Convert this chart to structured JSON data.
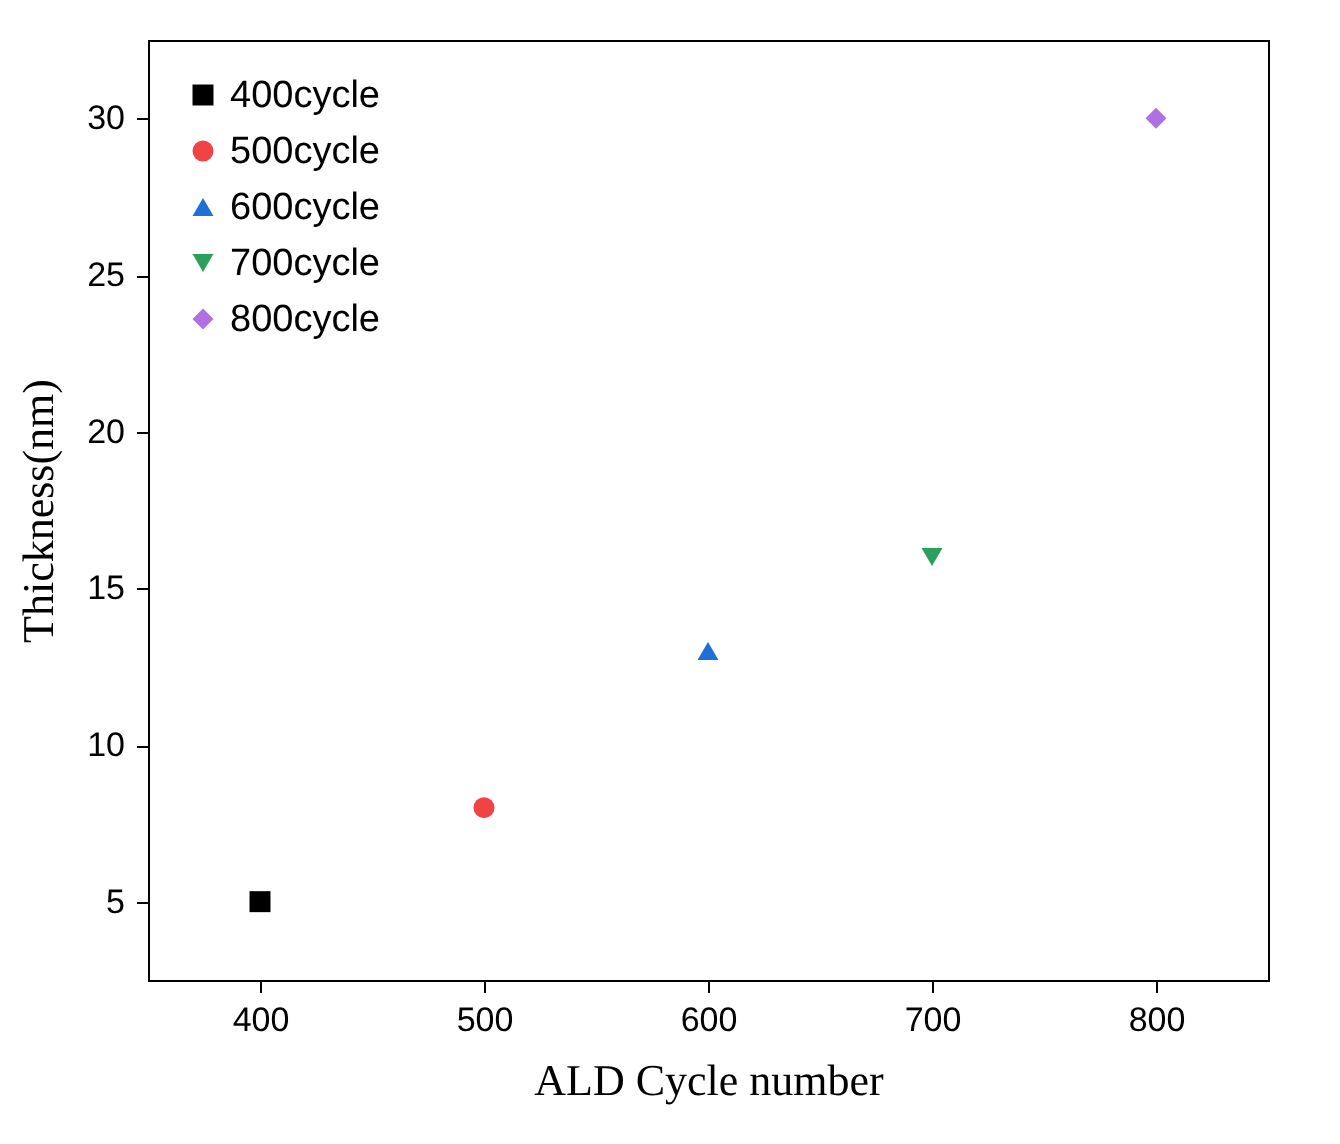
{
  "chart_data": {
    "type": "scatter",
    "xlabel": "ALD Cycle number",
    "ylabel": "Thickness(nm)",
    "xlim": [
      350,
      850
    ],
    "xticks": [
      400,
      500,
      600,
      700,
      800
    ],
    "ylim": [
      2.5,
      32.5
    ],
    "yticks": [
      5,
      10,
      15,
      20,
      25,
      30
    ],
    "grid": false,
    "legend": "top left",
    "series": [
      {
        "name": "400cycle",
        "color": "#000000",
        "marker": "square",
        "x": [
          400
        ],
        "values": [
          5
        ]
      },
      {
        "name": "500cycle",
        "color": "#f04444",
        "marker": "circle",
        "x": [
          500
        ],
        "values": [
          8
        ]
      },
      {
        "name": "600cycle",
        "color": "#1f6fd8",
        "marker": "triangle",
        "x": [
          600
        ],
        "values": [
          13
        ]
      },
      {
        "name": "700cycle",
        "color": "#2ca05a",
        "marker": "triangle-down",
        "x": [
          700
        ],
        "values": [
          16
        ]
      },
      {
        "name": "800cycle",
        "color": "#b070e0",
        "marker": "diamond",
        "x": [
          800
        ],
        "values": [
          30
        ]
      }
    ]
  }
}
